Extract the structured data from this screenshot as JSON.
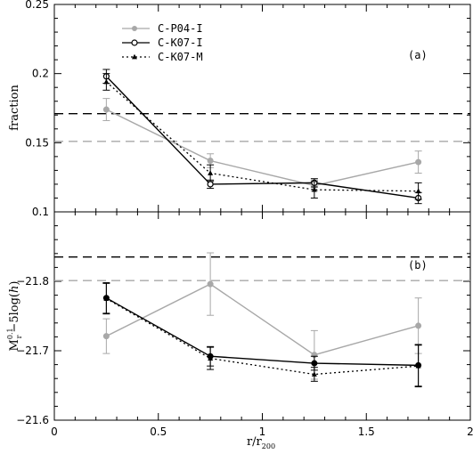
{
  "chart_data": [
    {
      "type": "line",
      "panel_label": "(a)",
      "xlabel": "",
      "ylabel": "fraction",
      "xlim": [
        0,
        2
      ],
      "ylim": [
        0.1,
        0.25
      ],
      "x_ticks": [
        0,
        0.5,
        1,
        1.5,
        2
      ],
      "y_ticks": [
        0.1,
        0.15,
        0.2,
        0.25
      ],
      "y_tick_labels": [
        "0.1",
        "0.15",
        "0.2",
        "0.25"
      ],
      "x": [
        0.25,
        0.75,
        1.25,
        1.75
      ],
      "legend_position": "top-left",
      "series": [
        {
          "name": "C-P04-I",
          "values": [
            0.174,
            0.137,
            0.119,
            0.136
          ],
          "errors": [
            0.008,
            0.005,
            0.004,
            0.008
          ],
          "color": "#a8a8a8",
          "style": "solid",
          "marker": "filled-circle"
        },
        {
          "name": "C-K07-I",
          "values": [
            0.198,
            0.12,
            0.121,
            0.11
          ],
          "errors": [
            0.005,
            0.003,
            0.003,
            0.004
          ],
          "color": "#000000",
          "style": "solid",
          "marker": "open-circle"
        },
        {
          "name": "C-K07-M",
          "values": [
            0.194,
            0.128,
            0.116,
            0.115
          ],
          "errors": [
            0.006,
            0.006,
            0.006,
            0.006
          ],
          "color": "#000000",
          "style": "dotted",
          "marker": "triangle"
        }
      ],
      "reference_lines": [
        {
          "y": 0.171,
          "color": "#000000",
          "style": "dashed"
        },
        {
          "y": 0.151,
          "color": "#a8a8a8",
          "style": "dashed"
        }
      ]
    },
    {
      "type": "line",
      "panel_label": "(b)",
      "xlabel": "r/r200",
      "ylabel": "M_r^0.1−5log(h)",
      "xlim": [
        0,
        2
      ],
      "ylim": [
        -21.6,
        -21.9
      ],
      "y_inverted": true,
      "x_ticks": [
        0,
        0.5,
        1,
        1.5,
        2
      ],
      "x_tick_labels": [
        "0",
        "0.5",
        "1",
        "1.5",
        "2"
      ],
      "y_ticks": [
        -21.6,
        -21.7,
        -21.8
      ],
      "y_tick_labels": [
        "−21.6",
        "−21.7",
        "−21.8"
      ],
      "x": [
        0.25,
        0.75,
        1.25,
        1.75
      ],
      "series": [
        {
          "name": "C-P04-I",
          "values": [
            -21.721,
            -21.796,
            -21.694,
            -21.736
          ],
          "errors": [
            0.025,
            0.045,
            0.035,
            0.04
          ],
          "color": "#a8a8a8",
          "style": "solid",
          "marker": "filled-circle"
        },
        {
          "name": "C-K07-I",
          "values": [
            -21.776,
            -21.692,
            -21.682,
            -21.679
          ],
          "errors": [
            0.022,
            0.014,
            0.01,
            0.03
          ],
          "color": "#000000",
          "style": "solid",
          "marker": "filled-circle"
        },
        {
          "name": "C-K07-M",
          "values": [
            -21.775,
            -21.689,
            -21.666,
            -21.678
          ],
          "errors": [
            0.022,
            0.016,
            0.01,
            0.03
          ],
          "color": "#000000",
          "style": "dotted",
          "marker": "triangle"
        }
      ],
      "reference_lines": [
        {
          "y": -21.835,
          "color": "#000000",
          "style": "dashed"
        },
        {
          "y": -21.801,
          "color": "#a8a8a8",
          "style": "dashed"
        }
      ]
    }
  ],
  "axis_labels": {
    "x_main": "r/r",
    "x_sub": "200",
    "y_top": "fraction",
    "y_bottom_m": "M",
    "y_bottom_sup": "0.1",
    "y_bottom_sub": "r",
    "y_bottom_rest": "−5log(",
    "y_bottom_h": "h",
    "y_bottom_close": ")"
  }
}
